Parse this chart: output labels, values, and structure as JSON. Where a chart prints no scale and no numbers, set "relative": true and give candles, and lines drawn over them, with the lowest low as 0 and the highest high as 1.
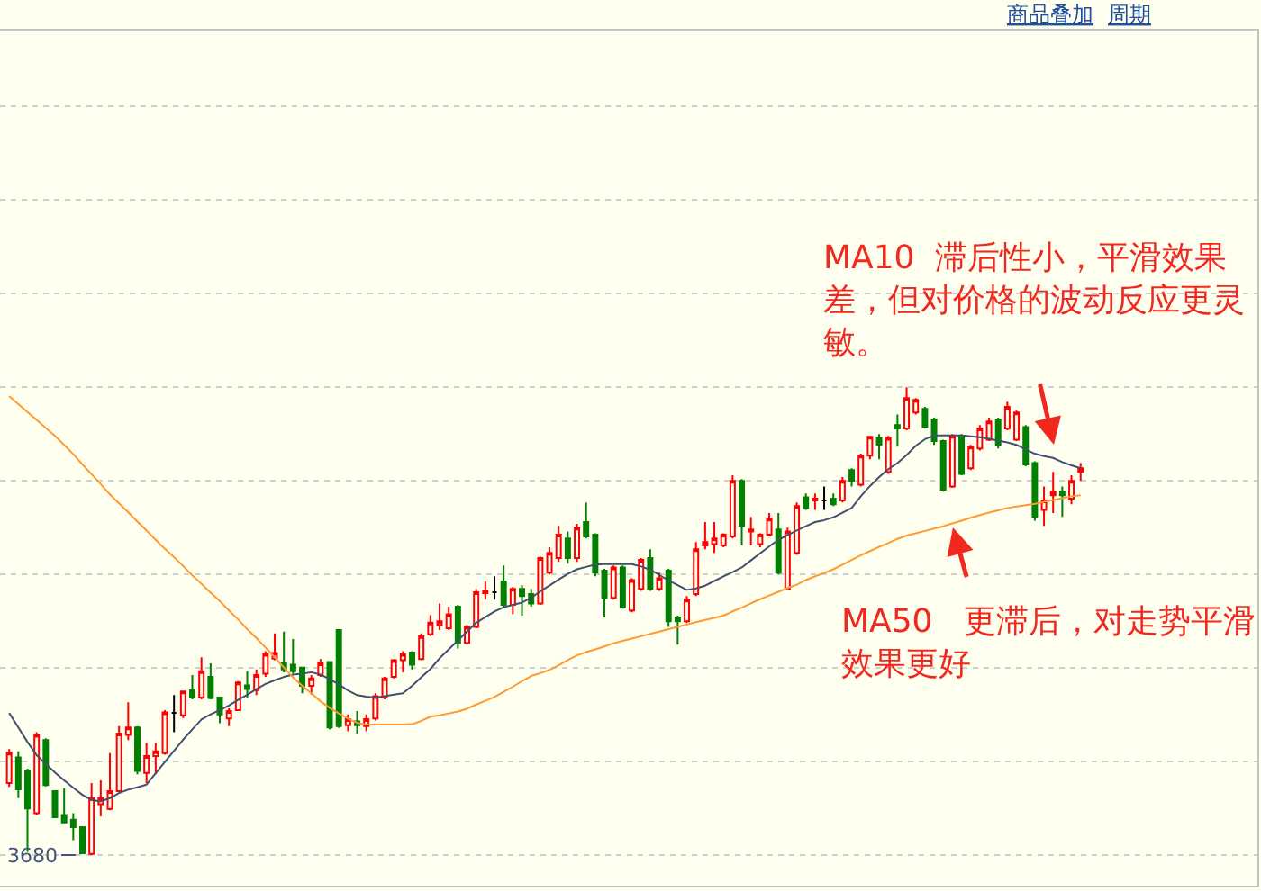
{
  "chart_data": {
    "type": "candlestick",
    "relative": true,
    "grid": "y",
    "categories": [
      null,
      null,
      null,
      null,
      null,
      null,
      null,
      null,
      null,
      null,
      null,
      null,
      null,
      null,
      null,
      null,
      null,
      null,
      null,
      null,
      null,
      null,
      null,
      null,
      null,
      null,
      null,
      null,
      null,
      null,
      null,
      null,
      null,
      null,
      null,
      null,
      null,
      null,
      null,
      null,
      null,
      null,
      null,
      null,
      null,
      null,
      null,
      null,
      null,
      null,
      null,
      null,
      null,
      null,
      null,
      null,
      null,
      null,
      null,
      null,
      null,
      null,
      null,
      null,
      null,
      null,
      null,
      null,
      null,
      null,
      null,
      null,
      null,
      null,
      null,
      null,
      null,
      null,
      null,
      null,
      null,
      null,
      null,
      null,
      null,
      null,
      null,
      null,
      null,
      null,
      null,
      null,
      null,
      null,
      null,
      null,
      null,
      null,
      null,
      null,
      null,
      null,
      null,
      null,
      null,
      null,
      null,
      null,
      null,
      null,
      null,
      null,
      null,
      null,
      null,
      null,
      null,
      null
    ],
    "ohlc": [
      [
        0.154,
        0.227,
        0.146,
        0.219
      ],
      [
        0.209,
        0.222,
        0.122,
        0.141
      ],
      [
        0.18,
        0.185,
        0.007,
        0.1
      ],
      [
        0.09,
        0.263,
        0.086,
        0.257
      ],
      [
        0.246,
        0.25,
        0.147,
        0.15
      ],
      [
        0.137,
        0.138,
        0.08,
        0.081
      ],
      [
        0.086,
        0.143,
        0.07,
        0.07
      ],
      [
        0.076,
        0.09,
        0.032,
        0.06
      ],
      [
        0.06,
        0.06,
        0.004,
        0.004
      ],
      [
        0.003,
        0.154,
        0,
        0.122
      ],
      [
        0.109,
        0.16,
        0.083,
        0.122
      ],
      [
        0.099,
        0.218,
        0.096,
        0.137
      ],
      [
        0.137,
        0.276,
        0.135,
        0.26
      ],
      [
        0.257,
        0.327,
        0.246,
        0.273
      ],
      [
        0.273,
        0.276,
        0.173,
        0.18
      ],
      [
        0.176,
        0.24,
        0.154,
        0.212
      ],
      [
        0.212,
        0.24,
        0.173,
        0.222
      ],
      [
        0.218,
        0.31,
        0.215,
        0.305
      ],
      [
        0.304,
        0.342,
        0.263,
        0.304
      ],
      [
        0.299,
        0.35,
        0.293,
        0.35
      ],
      [
        0.353,
        0.385,
        0.333,
        0.337
      ],
      [
        0.337,
        0.423,
        0.333,
        0.393
      ],
      [
        0.381,
        0.41,
        0.333,
        0.336
      ],
      [
        0.337,
        0.338,
        0.282,
        0.301
      ],
      [
        0.292,
        0.314,
        0.276,
        0.308
      ],
      [
        0.31,
        0.372,
        0.308,
        0.369
      ],
      [
        0.363,
        0.393,
        0.337,
        0.355
      ],
      [
        0.353,
        0.397,
        0.342,
        0.385
      ],
      [
        0.388,
        0.436,
        0.381,
        0.43
      ],
      [
        0.42,
        0.474,
        0.417,
        0.432
      ],
      [
        0.41,
        0.478,
        0.391,
        0.397
      ],
      [
        0.407,
        0.462,
        0.388,
        0.393
      ],
      [
        0.401,
        0.401,
        0.346,
        0.362
      ],
      [
        0.362,
        0.385,
        0.343,
        0.378
      ],
      [
        0.385,
        0.419,
        0.381,
        0.41
      ],
      [
        0.413,
        0.413,
        0.269,
        0.273
      ],
      [
        0.481,
        0.483,
        0.272,
        0.276
      ],
      [
        0.278,
        0.301,
        0.265,
        0.291
      ],
      [
        0.286,
        0.308,
        0.26,
        0.278
      ],
      [
        0.276,
        0.301,
        0.265,
        0.291
      ],
      [
        0.292,
        0.346,
        0.288,
        0.34
      ],
      [
        0.337,
        0.381,
        0.333,
        0.378
      ],
      [
        0.381,
        0.419,
        0.378,
        0.417
      ],
      [
        0.417,
        0.436,
        0.391,
        0.43
      ],
      [
        0.433,
        0.436,
        0.397,
        0.407
      ],
      [
        0.419,
        0.474,
        0.417,
        0.468
      ],
      [
        0.472,
        0.513,
        0.468,
        0.497
      ],
      [
        0.492,
        0.538,
        0.481,
        0.5
      ],
      [
        0.485,
        0.531,
        0.481,
        0.515
      ],
      [
        0.531,
        0.535,
        0.442,
        0.454
      ],
      [
        0.454,
        0.492,
        0.45,
        0.488
      ],
      [
        0.488,
        0.569,
        0.485,
        0.562
      ],
      [
        0.56,
        0.585,
        0.546,
        0.565
      ],
      [
        0.562,
        0.596,
        0.546,
        0.562
      ],
      [
        0.585,
        0.619,
        0.531,
        0.535
      ],
      [
        0.535,
        0.573,
        0.515,
        0.569
      ],
      [
        0.569,
        0.577,
        0.512,
        0.554
      ],
      [
        0.558,
        0.569,
        0.531,
        0.538
      ],
      [
        0.538,
        0.638,
        0.535,
        0.635
      ],
      [
        0.604,
        0.658,
        0.6,
        0.646
      ],
      [
        0.635,
        0.704,
        0.627,
        0.685
      ],
      [
        0.677,
        0.692,
        0.623,
        0.635
      ],
      [
        0.635,
        0.708,
        0.627,
        0.7
      ],
      [
        0.712,
        0.754,
        0.677,
        0.681
      ],
      [
        0.685,
        0.688,
        0.596,
        0.604
      ],
      [
        0.608,
        0.612,
        0.508,
        0.55
      ],
      [
        0.55,
        0.619,
        0.546,
        0.615
      ],
      [
        0.615,
        0.619,
        0.527,
        0.531
      ],
      [
        0.523,
        0.592,
        0.519,
        0.588
      ],
      [
        0.569,
        0.635,
        0.565,
        0.631
      ],
      [
        0.635,
        0.654,
        0.565,
        0.569
      ],
      [
        0.569,
        0.604,
        0.565,
        0.592
      ],
      [
        0.608,
        0.612,
        0.488,
        0.5
      ],
      [
        0.508,
        0.512,
        0.45,
        0.5
      ],
      [
        0.5,
        0.554,
        0.496,
        0.546
      ],
      [
        0.558,
        0.669,
        0.554,
        0.654
      ],
      [
        0.662,
        0.712,
        0.654,
        0.669
      ],
      [
        0.665,
        0.712,
        0.646,
        0.677
      ],
      [
        0.662,
        0.688,
        0.658,
        0.685
      ],
      [
        0.681,
        0.812,
        0.677,
        0.8
      ],
      [
        0.8,
        0.804,
        0.662,
        0.704
      ],
      [
        0.692,
        0.723,
        0.662,
        0.696
      ],
      [
        0.665,
        0.688,
        0.658,
        0.685
      ],
      [
        0.685,
        0.731,
        0.681,
        0.719
      ],
      [
        0.696,
        0.731,
        0.6,
        0.604
      ],
      [
        0.569,
        0.7,
        0.569,
        0.692
      ],
      [
        0.646,
        0.754,
        0.642,
        0.746
      ],
      [
        0.765,
        0.773,
        0.738,
        0.742
      ],
      [
        0.758,
        0.773,
        0.738,
        0.762
      ],
      [
        0.758,
        0.788,
        0.738,
        0.758
      ],
      [
        0.762,
        0.773,
        0.746,
        0.75
      ],
      [
        0.758,
        0.808,
        0.754,
        0.8
      ],
      [
        0.823,
        0.827,
        0.788,
        0.8
      ],
      [
        0.792,
        0.858,
        0.788,
        0.854
      ],
      [
        0.854,
        0.896,
        0.846,
        0.894
      ],
      [
        0.892,
        0.9,
        0.846,
        0.877
      ],
      [
        0.819,
        0.896,
        0.815,
        0.892
      ],
      [
        0.919,
        0.942,
        0.873,
        0.912
      ],
      [
        0.912,
        1,
        0.908,
        0.977
      ],
      [
        0.946,
        0.977,
        0.942,
        0.973
      ],
      [
        0.954,
        0.958,
        0.912,
        0.915
      ],
      [
        0.931,
        0.935,
        0.877,
        0.885
      ],
      [
        0.885,
        0.888,
        0.777,
        0.781
      ],
      [
        0.788,
        0.9,
        0.785,
        0.896
      ],
      [
        0.896,
        0.9,
        0.812,
        0.815
      ],
      [
        0.827,
        0.877,
        0.823,
        0.873
      ],
      [
        0.869,
        0.919,
        0.865,
        0.912
      ],
      [
        0.888,
        0.935,
        0.885,
        0.927
      ],
      [
        0.931,
        0.935,
        0.869,
        0.877
      ],
      [
        0.912,
        0.969,
        0.908,
        0.958
      ],
      [
        0.888,
        0.95,
        0.885,
        0.946
      ],
      [
        0.915,
        0.919,
        0.831,
        0.835
      ],
      [
        0.838,
        0.842,
        0.715,
        0.723
      ],
      [
        0.738,
        0.788,
        0.704,
        0.758
      ],
      [
        0.769,
        0.819,
        0.731,
        0.777
      ],
      [
        0.777,
        0.788,
        0.723,
        0.769
      ],
      [
        0.762,
        0.812,
        0.75,
        0.8
      ],
      [
        0.819,
        0.838,
        0.8,
        0.827
      ]
    ],
    "colors": [
      "#ff0000",
      "#008000",
      "#008000",
      "#ff0000",
      "#008000",
      "#008000",
      "#008000",
      "#008000",
      "#008000",
      "#ff0000",
      "#ff0000",
      "#ff0000",
      "#ff0000",
      "#ff0000",
      "#008000",
      "#ff0000",
      "#ff0000",
      "#ff0000",
      "#000000",
      "#ff0000",
      "#008000",
      "#ff0000",
      "#008000",
      "#008000",
      "#ff0000",
      "#ff0000",
      "#008000",
      "#ff0000",
      "#ff0000",
      "#ff0000",
      "#008000",
      "#008000",
      "#008000",
      "#ff0000",
      "#ff0000",
      "#008000",
      "#008000",
      "#ff0000",
      "#008000",
      "#ff0000",
      "#ff0000",
      "#ff0000",
      "#ff0000",
      "#ff0000",
      "#008000",
      "#ff0000",
      "#ff0000",
      "#ff0000",
      "#ff0000",
      "#008000",
      "#ff0000",
      "#ff0000",
      "#ff0000",
      "#000000",
      "#008000",
      "#ff0000",
      "#008000",
      "#008000",
      "#ff0000",
      "#ff0000",
      "#ff0000",
      "#008000",
      "#ff0000",
      "#008000",
      "#008000",
      "#008000",
      "#ff0000",
      "#008000",
      "#ff0000",
      "#ff0000",
      "#008000",
      "#ff0000",
      "#008000",
      "#008000",
      "#ff0000",
      "#ff0000",
      "#ff0000",
      "#ff0000",
      "#ff0000",
      "#ff0000",
      "#008000",
      "#ff0000",
      "#ff0000",
      "#ff0000",
      "#008000",
      "#ff0000",
      "#ff0000",
      "#008000",
      "#ff0000",
      "#000000",
      "#008000",
      "#ff0000",
      "#008000",
      "#ff0000",
      "#ff0000",
      "#008000",
      "#ff0000",
      "#008000",
      "#ff0000",
      "#ff0000",
      "#008000",
      "#008000",
      "#008000",
      "#ff0000",
      "#008000",
      "#ff0000",
      "#ff0000",
      "#ff0000",
      "#008000",
      "#ff0000",
      "#ff0000",
      "#008000",
      "#008000",
      "#ff0000",
      "#ff0000",
      "#008000",
      "#ff0000",
      "#ff0000"
    ],
    "series": [
      {
        "type": "line",
        "color": "#40506e",
        "values": [
          0.304,
          0.273,
          0.242,
          0.214,
          0.195,
          0.177,
          0.16,
          0.144,
          0.129,
          0.118,
          0.115,
          0.122,
          0.133,
          0.14,
          0.145,
          0.151,
          0.175,
          0.199,
          0.223,
          0.247,
          0.269,
          0.29,
          0.301,
          0.31,
          0.32,
          0.332,
          0.343,
          0.355,
          0.366,
          0.374,
          0.381,
          0.386,
          0.388,
          0.391,
          0.386,
          0.376,
          0.365,
          0.352,
          0.342,
          0.339,
          0.337,
          0.34,
          0.343,
          0.346,
          0.362,
          0.38,
          0.398,
          0.421,
          0.44,
          0.459,
          0.478,
          0.497,
          0.509,
          0.521,
          0.53,
          0.535,
          0.54,
          0.55,
          0.564,
          0.576,
          0.589,
          0.601,
          0.611,
          0.616,
          0.621,
          0.622,
          0.622,
          0.622,
          0.622,
          0.617,
          0.61,
          0.599,
          0.587,
          0.577,
          0.567,
          0.57,
          0.576,
          0.586,
          0.596,
          0.605,
          0.615,
          0.63,
          0.645,
          0.66,
          0.674,
          0.684,
          0.694,
          0.703,
          0.712,
          0.716,
          0.722,
          0.732,
          0.742,
          0.767,
          0.789,
          0.808,
          0.825,
          0.838,
          0.855,
          0.875,
          0.889,
          0.897,
          0.897,
          0.897,
          0.897,
          0.895,
          0.893,
          0.89,
          0.886,
          0.882,
          0.877,
          0.867,
          0.858,
          0.853,
          0.849,
          0.84,
          0.833,
          0.827
        ]
      },
      {
        "type": "line",
        "color": "#ff9a30",
        "values": [
          0.981,
          0.964,
          0.947,
          0.93,
          0.913,
          0.896,
          0.877,
          0.857,
          0.835,
          0.814,
          0.793,
          0.771,
          0.752,
          0.733,
          0.713,
          0.694,
          0.674,
          0.655,
          0.637,
          0.618,
          0.598,
          0.58,
          0.561,
          0.543,
          0.523,
          0.504,
          0.483,
          0.464,
          0.444,
          0.423,
          0.401,
          0.38,
          0.362,
          0.346,
          0.329,
          0.315,
          0.303,
          0.292,
          0.283,
          0.279,
          0.279,
          0.279,
          0.279,
          0.279,
          0.28,
          0.287,
          0.296,
          0.299,
          0.303,
          0.307,
          0.313,
          0.322,
          0.33,
          0.338,
          0.349,
          0.36,
          0.372,
          0.383,
          0.389,
          0.396,
          0.406,
          0.417,
          0.427,
          0.434,
          0.44,
          0.446,
          0.453,
          0.458,
          0.463,
          0.468,
          0.473,
          0.478,
          0.483,
          0.488,
          0.493,
          0.498,
          0.503,
          0.507,
          0.512,
          0.521,
          0.529,
          0.538,
          0.547,
          0.555,
          0.563,
          0.571,
          0.578,
          0.588,
          0.596,
          0.603,
          0.611,
          0.621,
          0.631,
          0.641,
          0.65,
          0.659,
          0.667,
          0.676,
          0.683,
          0.688,
          0.693,
          0.698,
          0.703,
          0.709,
          0.715,
          0.721,
          0.727,
          0.732,
          0.737,
          0.742,
          0.745,
          0.748,
          0.751,
          0.755,
          0.759,
          0.763,
          0.767,
          0.769
        ]
      }
    ],
    "annotations": [
      "商品叠加",
      "周期",
      "MA10  滞后性小，平滑效果差，但对价格的波动反应更灵敏。",
      "MA50   更滞后，对走势平滑效果更好",
      "3680"
    ]
  }
}
